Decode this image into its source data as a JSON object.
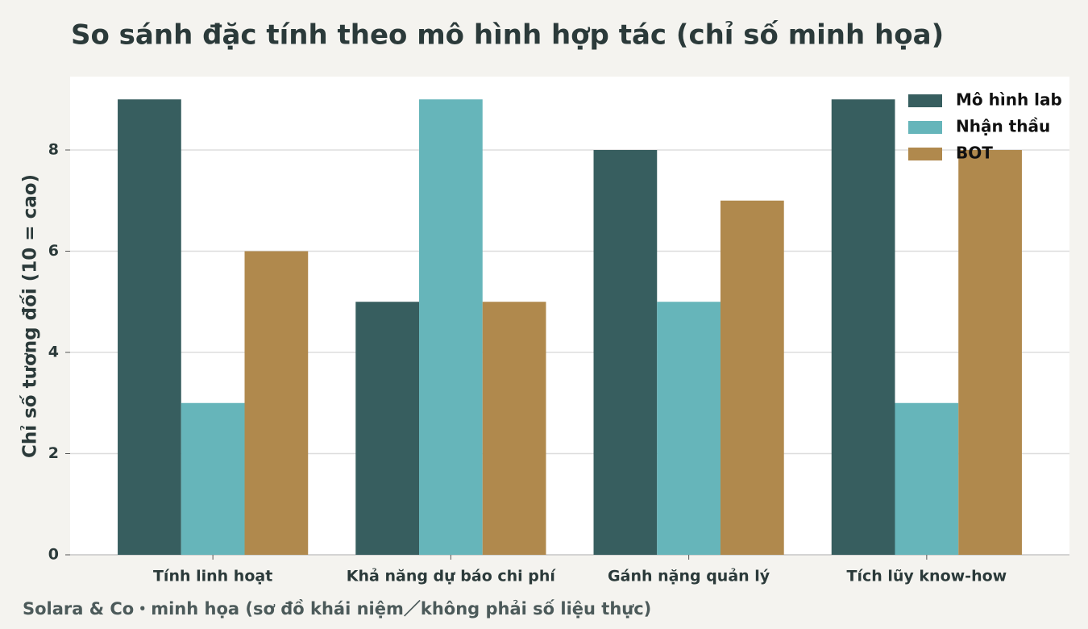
{
  "chart_data": {
    "type": "bar",
    "title": "So sánh đặc tính theo mô hình hợp tác (chỉ số minh họa)",
    "y_label": "Chỉ số tương đối (10 = cao)",
    "note": "Solara & Co・minh họa (sơ đồ khái niệm／không phải số liệu thực)",
    "categories": [
      "Tính linh hoạt",
      "Khả năng dự báo chi phí",
      "Gánh nặng quản lý",
      "Tích lũy know-how"
    ],
    "series": [
      {
        "name": "Mô hình lab",
        "color": "#375e5f",
        "values": [
          9,
          5,
          8,
          9
        ]
      },
      {
        "name": "Nhận thầu",
        "color": "#66b5ba",
        "values": [
          3,
          9,
          5,
          3
        ]
      },
      {
        "name": "BOT",
        "color": "#b0894d",
        "values": [
          6,
          5,
          7,
          8
        ]
      }
    ],
    "ylim": [
      0,
      9.45
    ],
    "yticks": [
      0,
      2,
      4,
      6,
      8
    ],
    "grid": true,
    "legend": "upper right"
  }
}
